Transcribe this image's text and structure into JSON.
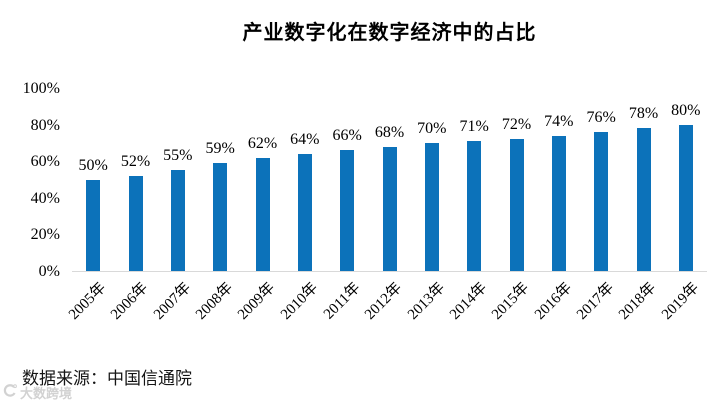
{
  "chart": {
    "title": "产业数字化在数字经济中的占比",
    "source": "数据来源：中国信通院",
    "watermark": "大数跨境"
  },
  "chart_data": {
    "type": "bar",
    "title": "产业数字化在数字经济中的占比",
    "categories": [
      "2005年",
      "2006年",
      "2007年",
      "2008年",
      "2009年",
      "2010年",
      "2011年",
      "2012年",
      "2013年",
      "2014年",
      "2015年",
      "2016年",
      "2017年",
      "2018年",
      "2019年"
    ],
    "values": [
      50,
      52,
      55,
      59,
      62,
      64,
      66,
      68,
      70,
      71,
      72,
      74,
      76,
      78,
      80
    ],
    "data_labels": [
      "50%",
      "52%",
      "55%",
      "59%",
      "62%",
      "64%",
      "66%",
      "68%",
      "70%",
      "71%",
      "72%",
      "74%",
      "76%",
      "78%",
      "80%"
    ],
    "unit": "%",
    "xlabel": "",
    "ylabel": "",
    "ylim": [
      0,
      100
    ],
    "yticks": [
      0,
      20,
      40,
      60,
      80,
      100
    ],
    "ytick_labels": [
      "0%",
      "20%",
      "40%",
      "60%",
      "80%",
      "100%"
    ],
    "grid": false,
    "legend_position": "none",
    "bar_color": "#0C72BA",
    "axis_line_color": "#D9D9D9",
    "label_color": "#000000",
    "watermark_color": "#D2D2D2",
    "source_note": "数据来源：中国信通院"
  }
}
